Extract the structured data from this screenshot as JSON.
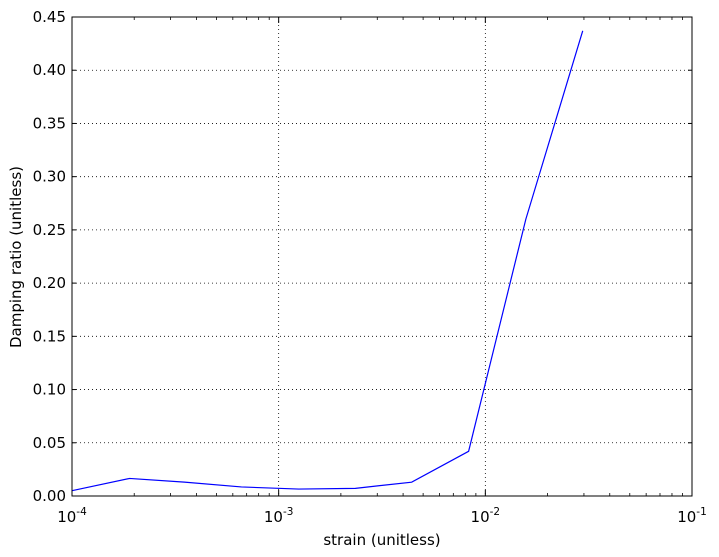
{
  "chart_data": {
    "type": "line",
    "xlabel": "strain (unitless)",
    "ylabel": "Damping ratio (unitless)",
    "x_scale": "log",
    "xlim": [
      0.0001,
      0.1
    ],
    "ylim": [
      0.0,
      0.45
    ],
    "grid": true,
    "x_ticks": [
      {
        "base": "10",
        "exp": "-4"
      },
      {
        "base": "10",
        "exp": "-3"
      },
      {
        "base": "10",
        "exp": "-2"
      },
      {
        "base": "10",
        "exp": "-1"
      }
    ],
    "y_ticks": [
      "0.00",
      "0.05",
      "0.10",
      "0.15",
      "0.20",
      "0.25",
      "0.30",
      "0.35",
      "0.40",
      "0.45"
    ],
    "series": [
      {
        "color": "#0000ff",
        "x": [
          0.0001,
          0.00019,
          0.00035,
          0.00066,
          0.00125,
          0.00235,
          0.0044,
          0.0083,
          0.0157,
          0.0296
        ],
        "y": [
          0.005,
          0.0165,
          0.013,
          0.0085,
          0.0065,
          0.0072,
          0.013,
          0.042,
          0.26,
          0.437
        ]
      }
    ]
  }
}
